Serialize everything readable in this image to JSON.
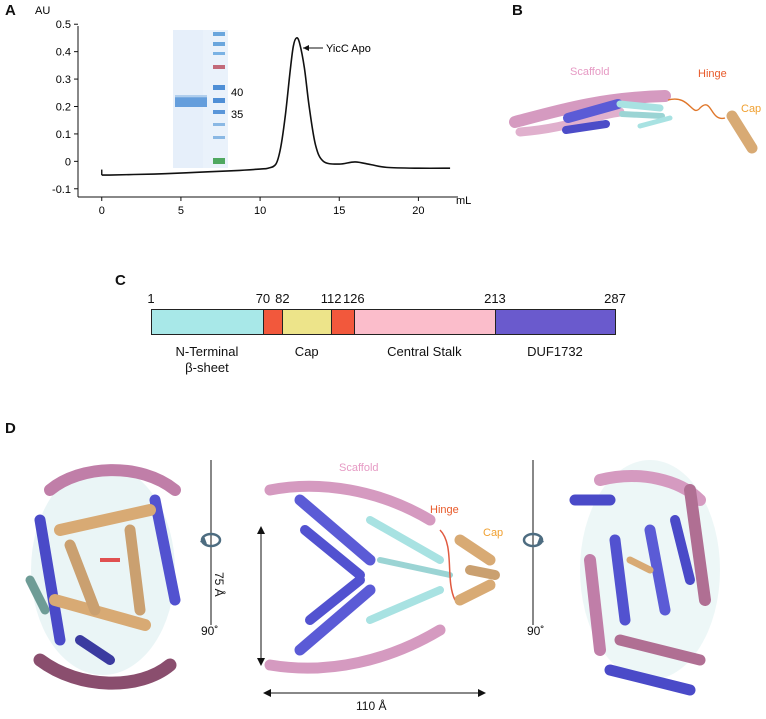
{
  "panels": {
    "a": "A",
    "b": "B",
    "c": "C",
    "d": "D"
  },
  "chart_data": {
    "type": "line",
    "ylabel": "AU",
    "xlabel": "mL",
    "xlim": [
      -1.5,
      22.5
    ],
    "ylim": [
      -0.13,
      0.53
    ],
    "xticks": [
      "0",
      "5",
      "10",
      "15",
      "20"
    ],
    "yticks": [
      "-0.1",
      "0",
      "0.1",
      "0.2",
      "0.3",
      "0.4",
      "0.5"
    ],
    "series": [
      {
        "x": [
          0,
          0.5,
          2,
          4,
          6,
          8,
          9,
          10,
          10.5,
          11,
          11.3,
          11.6,
          11.9,
          12.1,
          12.3,
          12.5,
          12.8,
          13.1,
          13.5,
          14,
          15,
          16,
          17,
          18,
          20,
          22
        ],
        "y": [
          -0.05,
          -0.05,
          -0.048,
          -0.045,
          -0.04,
          -0.035,
          -0.032,
          -0.028,
          -0.025,
          -0.01,
          0.05,
          0.17,
          0.33,
          0.42,
          0.45,
          0.43,
          0.34,
          0.2,
          0.06,
          0.0,
          -0.01,
          -0.002,
          -0.012,
          -0.022,
          -0.025,
          -0.025
        ]
      }
    ],
    "annotation": "YicC Apo",
    "gel_markers": [
      "40",
      "35"
    ]
  },
  "panel_b_labels": {
    "scaffold": "Scaffold",
    "hinge": "Hinge",
    "cap": "Cap"
  },
  "domain_map": {
    "positions": [
      "1",
      "70",
      "82",
      "112",
      "126",
      "213",
      "287"
    ],
    "segments": [
      {
        "name": "N-Terminal\nβ-sheet",
        "start": 1,
        "end": 70,
        "color": "#a8e8e8"
      },
      {
        "name": "",
        "start": 70,
        "end": 82,
        "color": "#f2583c"
      },
      {
        "name": "Cap",
        "start": 82,
        "end": 112,
        "color": "#ede48a"
      },
      {
        "name": "",
        "start": 112,
        "end": 126,
        "color": "#f2583c"
      },
      {
        "name": "Central Stalk",
        "start": 126,
        "end": 213,
        "color": "#fbbdcb"
      },
      {
        "name": "DUF1732",
        "start": 213,
        "end": 287,
        "color": "#6a5acd"
      }
    ]
  },
  "panel_d": {
    "scaffold": "Scaffold",
    "hinge": "Hinge",
    "cap": "Cap",
    "height": "75 Å",
    "width": "110 Å",
    "rot_left": "90˚",
    "rot_right": "90˚"
  }
}
